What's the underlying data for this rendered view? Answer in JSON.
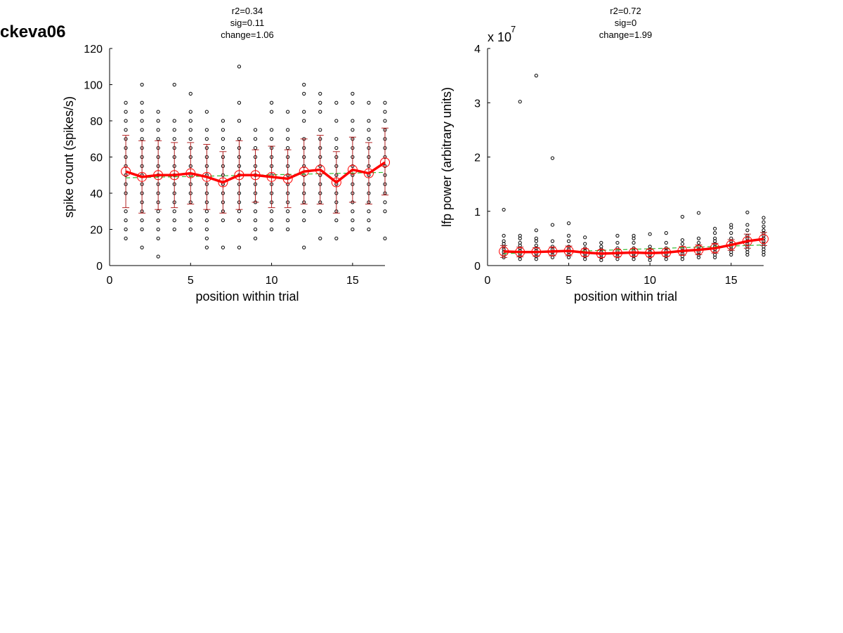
{
  "figure": {
    "label": "ckeva06"
  },
  "chart_data": [
    {
      "type": "scatter",
      "title": [
        "r2=0.34",
        "sig=0.11",
        "change=1.06"
      ],
      "xlabel": "position within trial",
      "ylabel": "spike count (spikes/s)",
      "xlim": [
        0,
        17
      ],
      "ylim": [
        0,
        120
      ],
      "xticks": [
        0,
        5,
        10,
        15
      ],
      "yticks": [
        0,
        20,
        40,
        60,
        80,
        100,
        120
      ],
      "exponent_label": "",
      "grid": false,
      "colors": {
        "points": "#000000",
        "mean_line": "#ff0000",
        "error_bars": "#b22222",
        "fit": "#33bb33"
      },
      "scatter": [
        {
          "x": 1,
          "y": [
            15,
            20,
            25,
            30,
            40,
            45,
            50,
            55,
            60,
            65,
            70,
            75,
            80,
            85,
            90
          ]
        },
        {
          "x": 2,
          "y": [
            10,
            20,
            25,
            30,
            35,
            40,
            45,
            50,
            55,
            60,
            65,
            70,
            75,
            80,
            85,
            90,
            100
          ]
        },
        {
          "x": 3,
          "y": [
            5,
            15,
            20,
            25,
            30,
            35,
            40,
            45,
            50,
            55,
            60,
            65,
            70,
            75,
            80,
            85
          ]
        },
        {
          "x": 4,
          "y": [
            20,
            25,
            30,
            35,
            40,
            45,
            50,
            55,
            60,
            65,
            70,
            75,
            80,
            100
          ]
        },
        {
          "x": 5,
          "y": [
            20,
            25,
            30,
            35,
            40,
            45,
            50,
            55,
            60,
            65,
            70,
            75,
            80,
            85,
            95
          ]
        },
        {
          "x": 6,
          "y": [
            10,
            15,
            20,
            25,
            30,
            35,
            40,
            45,
            50,
            55,
            60,
            65,
            70,
            75,
            85
          ]
        },
        {
          "x": 7,
          "y": [
            10,
            25,
            30,
            35,
            40,
            45,
            50,
            55,
            60,
            65,
            70,
            75,
            80
          ]
        },
        {
          "x": 8,
          "y": [
            10,
            25,
            30,
            35,
            40,
            45,
            50,
            55,
            60,
            65,
            70,
            80,
            90,
            110
          ]
        },
        {
          "x": 9,
          "y": [
            15,
            20,
            25,
            30,
            35,
            40,
            45,
            50,
            55,
            60,
            65,
            70,
            75
          ]
        },
        {
          "x": 10,
          "y": [
            20,
            25,
            30,
            35,
            40,
            45,
            50,
            55,
            60,
            65,
            70,
            75,
            85,
            90
          ]
        },
        {
          "x": 11,
          "y": [
            20,
            25,
            30,
            35,
            40,
            45,
            50,
            55,
            60,
            65,
            70,
            75,
            85
          ]
        },
        {
          "x": 12,
          "y": [
            10,
            25,
            30,
            35,
            40,
            45,
            50,
            55,
            60,
            65,
            70,
            80,
            85,
            95,
            100
          ]
        },
        {
          "x": 13,
          "y": [
            15,
            30,
            35,
            40,
            45,
            50,
            55,
            60,
            65,
            70,
            75,
            85,
            90,
            95
          ]
        },
        {
          "x": 14,
          "y": [
            15,
            25,
            30,
            35,
            40,
            45,
            50,
            55,
            60,
            65,
            70,
            80,
            90
          ]
        },
        {
          "x": 15,
          "y": [
            20,
            25,
            30,
            35,
            40,
            45,
            50,
            55,
            60,
            65,
            70,
            75,
            80,
            90,
            95
          ]
        },
        {
          "x": 16,
          "y": [
            20,
            25,
            30,
            35,
            40,
            45,
            50,
            55,
            60,
            65,
            70,
            75,
            80,
            90
          ]
        },
        {
          "x": 17,
          "y": [
            15,
            30,
            35,
            40,
            45,
            50,
            55,
            60,
            65,
            70,
            75,
            80,
            85,
            90
          ]
        }
      ],
      "mean": {
        "x": [
          1,
          2,
          3,
          4,
          5,
          6,
          7,
          8,
          9,
          10,
          11,
          12,
          13,
          14,
          15,
          16,
          17
        ],
        "y": [
          52,
          49,
          50,
          50,
          51,
          49,
          46,
          50,
          50,
          49,
          48,
          52,
          53,
          46,
          53,
          51,
          57
        ]
      },
      "error": {
        "lower": [
          32,
          29,
          31,
          32,
          34,
          31,
          29,
          31,
          35,
          32,
          32,
          34,
          34,
          29,
          35,
          34,
          39
        ],
        "upper": [
          72,
          69,
          69,
          68,
          68,
          67,
          63,
          69,
          64,
          66,
          64,
          70,
          72,
          63,
          71,
          68,
          76
        ]
      },
      "fit": {
        "x": [
          1,
          17
        ],
        "y": [
          48.5,
          51.5
        ]
      }
    },
    {
      "type": "scatter",
      "title": [
        "r2=0.72",
        "sig=0",
        "change=1.99"
      ],
      "xlabel": "position within trial",
      "ylabel": "lfp power (arbitrary units)",
      "xlim": [
        0,
        17
      ],
      "ylim": [
        0,
        4
      ],
      "xticks": [
        0,
        5,
        10,
        15
      ],
      "yticks": [
        0,
        1,
        2,
        3,
        4
      ],
      "exponent_label": "x 10",
      "exponent_power": "7",
      "grid": false,
      "colors": {
        "points": "#000000",
        "mean_line": "#ff0000",
        "error_bars": "#b22222",
        "fit": "#33bb33"
      },
      "scatter": [
        {
          "x": 1,
          "y": [
            0.15,
            0.2,
            0.25,
            0.3,
            0.35,
            0.4,
            0.45,
            0.55,
            1.03
          ]
        },
        {
          "x": 2,
          "y": [
            0.12,
            0.17,
            0.22,
            0.27,
            0.32,
            0.37,
            0.42,
            0.5,
            0.55,
            3.02
          ]
        },
        {
          "x": 3,
          "y": [
            0.12,
            0.17,
            0.22,
            0.27,
            0.32,
            0.37,
            0.45,
            0.5,
            0.65,
            3.5
          ]
        },
        {
          "x": 4,
          "y": [
            0.15,
            0.2,
            0.25,
            0.3,
            0.35,
            0.45,
            0.75,
            1.98
          ]
        },
        {
          "x": 5,
          "y": [
            0.15,
            0.2,
            0.25,
            0.3,
            0.35,
            0.45,
            0.55,
            0.78
          ]
        },
        {
          "x": 6,
          "y": [
            0.12,
            0.17,
            0.22,
            0.27,
            0.32,
            0.4,
            0.52
          ]
        },
        {
          "x": 7,
          "y": [
            0.1,
            0.15,
            0.2,
            0.25,
            0.3,
            0.35,
            0.42
          ]
        },
        {
          "x": 8,
          "y": [
            0.12,
            0.17,
            0.22,
            0.27,
            0.32,
            0.42,
            0.55
          ]
        },
        {
          "x": 9,
          "y": [
            0.12,
            0.17,
            0.22,
            0.27,
            0.32,
            0.42,
            0.5,
            0.55
          ]
        },
        {
          "x": 10,
          "y": [
            0.1,
            0.15,
            0.2,
            0.25,
            0.3,
            0.35,
            0.58
          ]
        },
        {
          "x": 11,
          "y": [
            0.12,
            0.17,
            0.22,
            0.27,
            0.32,
            0.42,
            0.6
          ]
        },
        {
          "x": 12,
          "y": [
            0.12,
            0.17,
            0.22,
            0.27,
            0.32,
            0.4,
            0.47,
            0.9
          ]
        },
        {
          "x": 13,
          "y": [
            0.15,
            0.2,
            0.25,
            0.3,
            0.35,
            0.42,
            0.5,
            0.97
          ]
        },
        {
          "x": 14,
          "y": [
            0.15,
            0.2,
            0.25,
            0.3,
            0.35,
            0.4,
            0.45,
            0.5,
            0.6,
            0.68
          ]
        },
        {
          "x": 15,
          "y": [
            0.2,
            0.25,
            0.3,
            0.35,
            0.4,
            0.45,
            0.5,
            0.6,
            0.7,
            0.75
          ]
        },
        {
          "x": 16,
          "y": [
            0.2,
            0.25,
            0.3,
            0.35,
            0.4,
            0.45,
            0.5,
            0.55,
            0.65,
            0.75,
            0.98
          ]
        },
        {
          "x": 17,
          "y": [
            0.2,
            0.25,
            0.3,
            0.35,
            0.4,
            0.45,
            0.5,
            0.55,
            0.6,
            0.65,
            0.72,
            0.8,
            0.88
          ]
        }
      ],
      "mean": {
        "x": [
          1,
          2,
          3,
          4,
          5,
          6,
          7,
          8,
          9,
          10,
          11,
          12,
          13,
          14,
          15,
          16,
          17
        ],
        "y": [
          0.26,
          0.25,
          0.25,
          0.26,
          0.27,
          0.24,
          0.22,
          0.23,
          0.24,
          0.23,
          0.24,
          0.27,
          0.29,
          0.32,
          0.38,
          0.45,
          0.49
        ]
      },
      "error": {
        "lower": [
          0.15,
          0.16,
          0.17,
          0.18,
          0.18,
          0.17,
          0.15,
          0.16,
          0.17,
          0.16,
          0.17,
          0.19,
          0.2,
          0.23,
          0.28,
          0.32,
          0.37
        ],
        "upper": [
          0.37,
          0.34,
          0.33,
          0.34,
          0.36,
          0.31,
          0.29,
          0.3,
          0.31,
          0.3,
          0.31,
          0.35,
          0.38,
          0.41,
          0.48,
          0.58,
          0.61
        ]
      },
      "fit": {
        "x": [
          1,
          17
        ],
        "y": [
          0.22,
          0.38
        ]
      }
    }
  ]
}
